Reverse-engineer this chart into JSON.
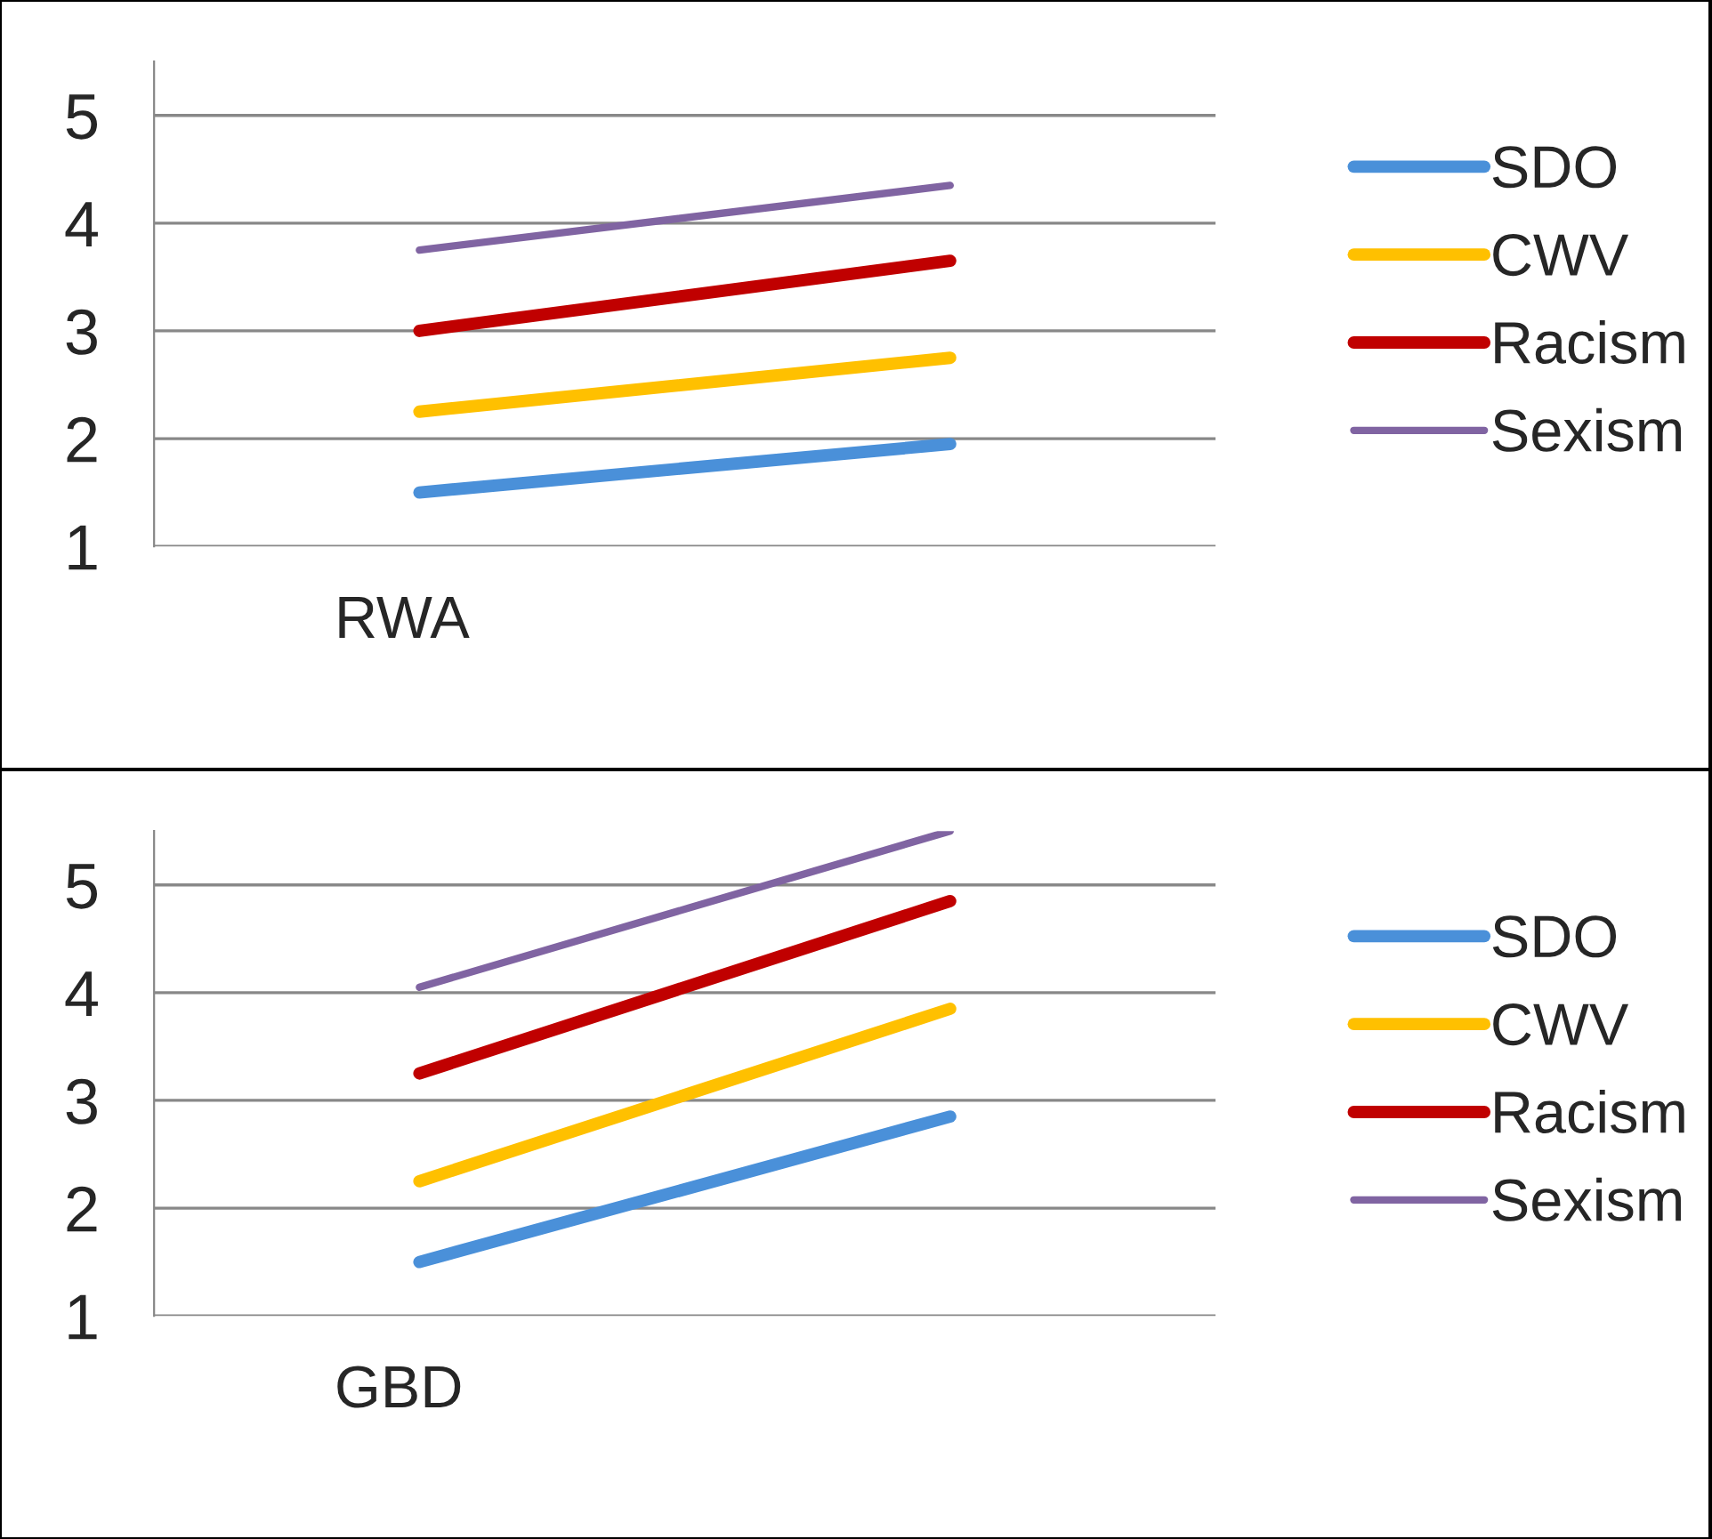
{
  "chart_data": [
    {
      "type": "line",
      "xlabel": "RWA",
      "categories": [
        null,
        null
      ],
      "ylim": [
        1,
        5.5
      ],
      "yticks": [
        1,
        2,
        3,
        4,
        5
      ],
      "grid": "y",
      "legend": "right",
      "marker": "none",
      "line_style": "solid",
      "tick_labels": "y",
      "series": [
        {
          "name": "SDO",
          "color": "#4a90d9",
          "values": [
            1.5,
            1.95
          ]
        },
        {
          "name": "CWV",
          "color": "#ffc000",
          "values": [
            2.25,
            2.75
          ]
        },
        {
          "name": "Racism",
          "color": "#c00000",
          "values": [
            3.0,
            3.65
          ]
        },
        {
          "name": "Sexism",
          "color": "#8064a2",
          "values": [
            3.75,
            4.35
          ]
        }
      ]
    },
    {
      "type": "line",
      "xlabel": "GBD",
      "categories": [
        null,
        null
      ],
      "ylim": [
        1,
        5.5
      ],
      "yticks": [
        1,
        2,
        3,
        4,
        5
      ],
      "grid": "y",
      "legend": "right",
      "marker": "none",
      "line_style": "solid",
      "tick_labels": "y",
      "series": [
        {
          "name": "SDO",
          "color": "#4a90d9",
          "values": [
            1.5,
            2.85
          ]
        },
        {
          "name": "CWV",
          "color": "#ffc000",
          "values": [
            2.25,
            3.85
          ]
        },
        {
          "name": "Racism",
          "color": "#c00000",
          "values": [
            3.25,
            4.85
          ]
        },
        {
          "name": "Sexism",
          "color": "#8064a2",
          "values": [
            4.05,
            5.5
          ]
        }
      ]
    }
  ]
}
